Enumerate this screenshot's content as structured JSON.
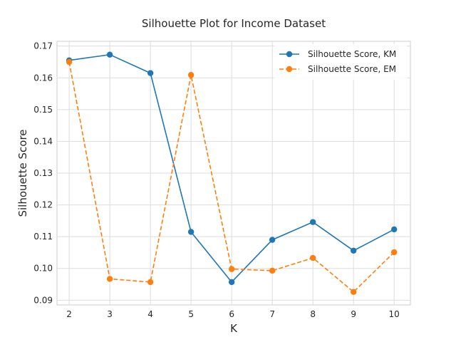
{
  "chart_data": {
    "type": "line",
    "title": "Silhouette Plot for Income Dataset",
    "xlabel": "K",
    "ylabel": "Silhouette Score",
    "x": [
      2,
      3,
      4,
      5,
      6,
      7,
      8,
      9,
      10
    ],
    "xlim": [
      1.7,
      10.4
    ],
    "ylim": [
      0.0885,
      0.1715
    ],
    "yticks": [
      0.09,
      0.1,
      0.11,
      0.12,
      0.13,
      0.14,
      0.15,
      0.16,
      0.17
    ],
    "ytick_labels": [
      "0.09",
      "0.10",
      "0.11",
      "0.12",
      "0.13",
      "0.14",
      "0.15",
      "0.16",
      "0.17"
    ],
    "xtick_labels": [
      "2",
      "3",
      "4",
      "5",
      "6",
      "7",
      "8",
      "9",
      "10"
    ],
    "grid": true,
    "legend_position": "top-right",
    "series": [
      {
        "name": "Silhouette Score, KM",
        "color": "#1f77b4",
        "line_style": "solid",
        "marker": "circle",
        "values": [
          0.1655,
          0.1673,
          0.1615,
          0.1115,
          0.0957,
          0.109,
          0.1146,
          0.1056,
          0.1123
        ]
      },
      {
        "name": "Silhouette Score, EM",
        "color": "#ff7f0e",
        "line_style": "dashed",
        "marker": "circle",
        "values": [
          0.165,
          0.0967,
          0.0957,
          0.1609,
          0.0998,
          0.0993,
          0.1033,
          0.0926,
          0.1051
        ]
      }
    ]
  }
}
